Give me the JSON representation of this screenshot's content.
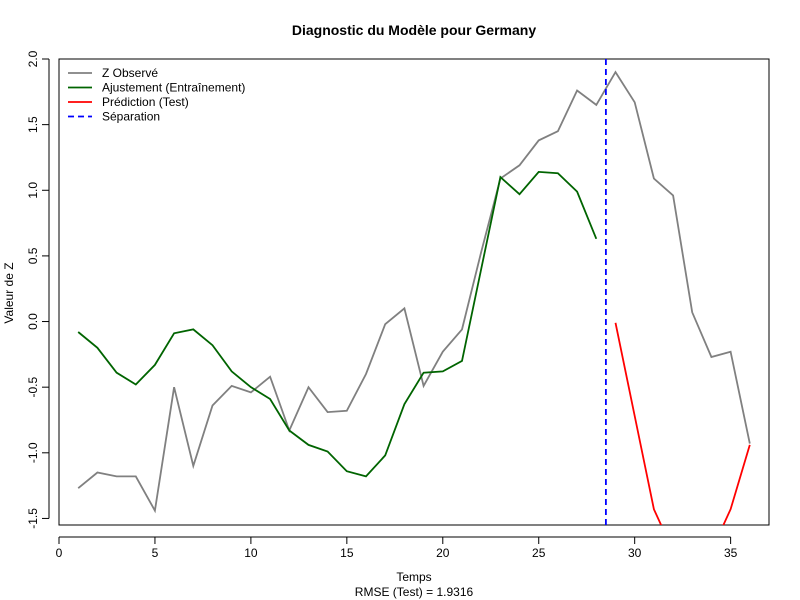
{
  "chart_data": {
    "type": "line",
    "title": "Diagnostic du Modèle pour Germany",
    "xlabel": "Temps",
    "ylabel": "Valeur de Z",
    "subtitle": "RMSE (Test) = 1.9316",
    "xlim": [
      0,
      37
    ],
    "ylim": [
      -1.55,
      2.0
    ],
    "x_ticks": [
      0,
      5,
      10,
      15,
      20,
      25,
      30,
      35
    ],
    "y_ticks": [
      -1.5,
      -1.0,
      -0.5,
      0.0,
      0.5,
      1.0,
      1.5,
      2.0
    ],
    "x_tick_labels": [
      "0",
      "5",
      "10",
      "15",
      "20",
      "25",
      "30",
      "35"
    ],
    "y_tick_labels": [
      "-1.5",
      "-1.0",
      "-0.5",
      "0.0",
      "0.5",
      "1.0",
      "1.5",
      "2.0"
    ],
    "grid": false,
    "legend_position": "top-left",
    "series": [
      {
        "name": "Z Observé",
        "color": "#808080",
        "dash": "solid",
        "x": [
          1,
          2,
          3,
          4,
          5,
          6,
          7,
          8,
          9,
          10,
          11,
          12,
          13,
          14,
          15,
          16,
          17,
          18,
          19,
          20,
          21,
          22,
          23,
          24,
          25,
          26,
          27,
          28,
          29,
          30,
          31,
          32,
          33,
          34,
          35,
          36
        ],
        "y": [
          -1.27,
          -1.15,
          -1.18,
          -1.18,
          -1.44,
          -0.5,
          -1.1,
          -0.64,
          -0.49,
          -0.54,
          -0.42,
          -0.83,
          -0.5,
          -0.69,
          -0.68,
          -0.4,
          -0.02,
          0.1,
          -0.49,
          -0.23,
          -0.06,
          0.53,
          1.09,
          1.19,
          1.38,
          1.45,
          1.76,
          1.65,
          1.9,
          1.67,
          1.09,
          0.96,
          0.07,
          -0.27,
          -0.23,
          -0.93
        ]
      },
      {
        "name": "Ajustement (Entraînement)",
        "color": "#006400",
        "dash": "solid",
        "x": [
          1,
          2,
          3,
          4,
          5,
          6,
          7,
          8,
          9,
          10,
          11,
          12,
          13,
          14,
          15,
          16,
          17,
          18,
          19,
          20,
          21,
          22,
          23,
          24,
          25,
          26,
          27,
          28
        ],
        "y": [
          -0.08,
          -0.2,
          -0.39,
          -0.48,
          -0.33,
          -0.09,
          -0.06,
          -0.18,
          -0.38,
          -0.5,
          -0.59,
          -0.83,
          -0.94,
          -0.99,
          -1.14,
          -1.18,
          -1.02,
          -0.63,
          -0.39,
          -0.38,
          -0.3,
          0.4,
          1.1,
          0.97,
          1.14,
          1.13,
          0.99,
          0.63
        ]
      },
      {
        "name": "Prédiction (Test)",
        "color": "#ff0000",
        "dash": "solid",
        "x": [
          29,
          30,
          31,
          32,
          33,
          34,
          35,
          36
        ],
        "y": [
          -0.01,
          -0.72,
          -1.43,
          -1.75,
          -1.85,
          -1.75,
          -1.43,
          -0.94
        ]
      }
    ],
    "vertical_line": {
      "name": "Séparation",
      "x": 28.5,
      "color": "#0000ff",
      "dash": "dashed"
    },
    "rmse_label": "RMSE (Test) = 1.9316"
  }
}
